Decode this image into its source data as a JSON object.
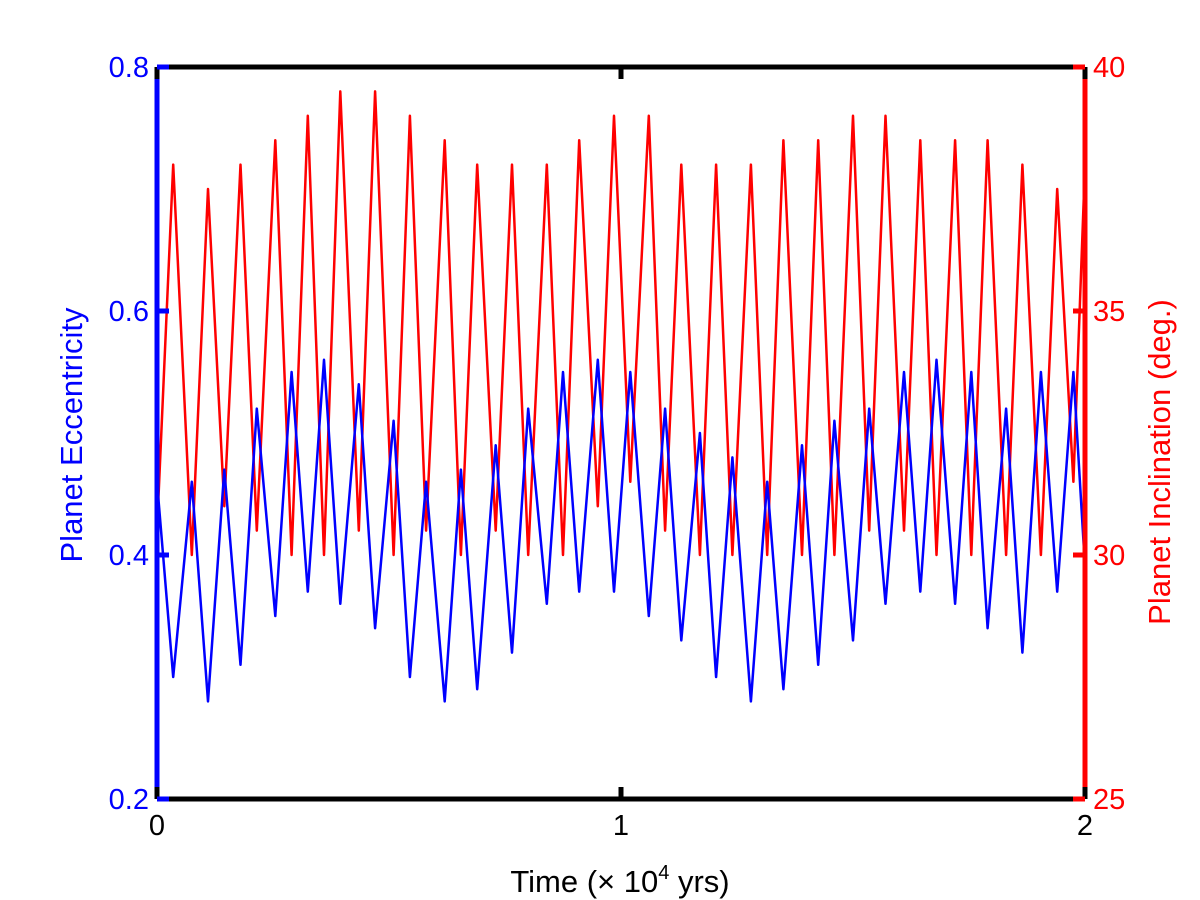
{
  "chart_data": {
    "type": "line",
    "title": "",
    "xlabel": {
      "prefix": "Time (",
      "times": "×",
      "base": " 10",
      "exponent": "4",
      "suffix": " yrs)"
    },
    "xlim": [
      0,
      2
    ],
    "x_ticks": [
      "0",
      "1",
      "2"
    ],
    "y_left": {
      "label": "Planet Eccentricity",
      "color": "#0000ff",
      "range": [
        0.2,
        0.8
      ],
      "ticks": [
        "0.2",
        "0.4",
        "0.6",
        "0.8"
      ]
    },
    "y_right": {
      "label": "Planet Inclination (deg.)",
      "color": "#ff0000",
      "range": [
        25,
        40
      ],
      "ticks": [
        "25",
        "30",
        "35",
        "40"
      ]
    },
    "series": [
      {
        "name": "Planet Eccentricity",
        "axis": "left",
        "color": "#0000ff",
        "x": [
          0.0,
          0.035,
          0.075,
          0.11,
          0.145,
          0.18,
          0.215,
          0.255,
          0.29,
          0.325,
          0.36,
          0.395,
          0.435,
          0.47,
          0.51,
          0.545,
          0.58,
          0.62,
          0.655,
          0.69,
          0.73,
          0.765,
          0.8,
          0.84,
          0.875,
          0.91,
          0.95,
          0.985,
          1.02,
          1.06,
          1.095,
          1.13,
          1.17,
          1.205,
          1.24,
          1.28,
          1.315,
          1.35,
          1.39,
          1.425,
          1.46,
          1.5,
          1.535,
          1.57,
          1.61,
          1.645,
          1.68,
          1.72,
          1.755,
          1.79,
          1.83,
          1.865,
          1.905,
          1.94,
          1.975,
          2.0
        ],
        "y": [
          0.46,
          0.3,
          0.46,
          0.28,
          0.47,
          0.31,
          0.52,
          0.35,
          0.55,
          0.37,
          0.56,
          0.36,
          0.54,
          0.34,
          0.51,
          0.3,
          0.46,
          0.28,
          0.47,
          0.29,
          0.49,
          0.32,
          0.52,
          0.36,
          0.55,
          0.37,
          0.56,
          0.37,
          0.55,
          0.35,
          0.52,
          0.33,
          0.5,
          0.3,
          0.48,
          0.28,
          0.46,
          0.29,
          0.49,
          0.31,
          0.51,
          0.33,
          0.52,
          0.36,
          0.55,
          0.37,
          0.56,
          0.36,
          0.55,
          0.34,
          0.52,
          0.32,
          0.55,
          0.37,
          0.55,
          0.39
        ]
      },
      {
        "name": "Planet Inclination (deg.)",
        "axis": "right",
        "color": "#ff0000",
        "x": [
          0.0,
          0.035,
          0.075,
          0.11,
          0.145,
          0.18,
          0.215,
          0.255,
          0.29,
          0.325,
          0.36,
          0.395,
          0.435,
          0.47,
          0.51,
          0.545,
          0.58,
          0.62,
          0.655,
          0.69,
          0.73,
          0.765,
          0.8,
          0.84,
          0.875,
          0.91,
          0.95,
          0.985,
          1.02,
          1.06,
          1.095,
          1.13,
          1.17,
          1.205,
          1.24,
          1.28,
          1.315,
          1.35,
          1.39,
          1.425,
          1.46,
          1.5,
          1.535,
          1.57,
          1.61,
          1.645,
          1.68,
          1.72,
          1.755,
          1.79,
          1.83,
          1.865,
          1.905,
          1.94,
          1.975,
          2.0
        ],
        "y": [
          30.5,
          38.0,
          30.0,
          37.5,
          31.0,
          38.0,
          30.5,
          38.5,
          30.0,
          39.0,
          30.0,
          39.5,
          30.5,
          39.5,
          30.0,
          39.0,
          30.5,
          38.5,
          30.0,
          38.0,
          30.5,
          38.0,
          30.0,
          38.0,
          30.0,
          38.5,
          31.0,
          39.0,
          31.5,
          39.0,
          30.5,
          38.0,
          30.0,
          38.0,
          30.0,
          38.0,
          30.0,
          38.5,
          30.0,
          38.5,
          30.0,
          39.0,
          30.5,
          39.0,
          30.5,
          38.5,
          30.0,
          38.5,
          30.0,
          38.5,
          30.0,
          38.0,
          30.0,
          37.5,
          31.5,
          38.0
        ]
      }
    ]
  }
}
